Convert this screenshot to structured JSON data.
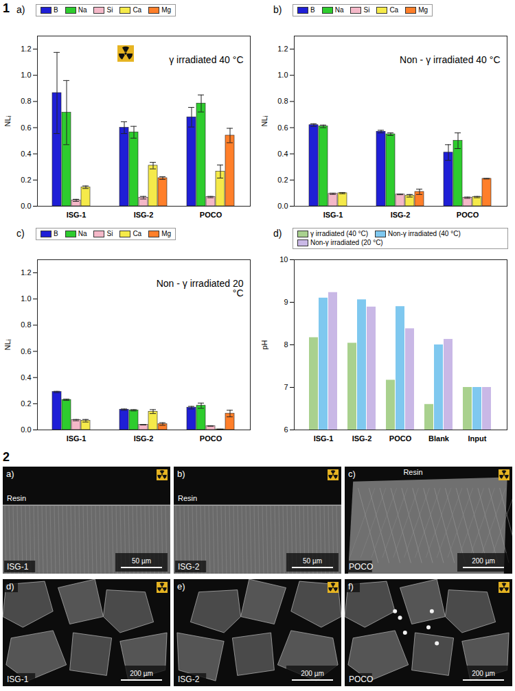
{
  "figure_labels": [
    "1",
    "2"
  ],
  "chart_data": [
    {
      "type": "bar",
      "panel": "a)",
      "title": "γ irradiated 40 °C",
      "categories": [
        "ISG-1",
        "ISG-2",
        "POCO"
      ],
      "series": [
        {
          "name": "B",
          "color": "#1f1fd6",
          "values": [
            0.865,
            0.6,
            0.68
          ],
          "errors": [
            0.31,
            0.045,
            0.075
          ]
        },
        {
          "name": "Na",
          "color": "#2ecc2e",
          "values": [
            0.715,
            0.565,
            0.785
          ],
          "errors": [
            0.245,
            0.045,
            0.065
          ]
        },
        {
          "name": "Si",
          "color": "#f4b8c8",
          "values": [
            0.045,
            0.065,
            0.07
          ],
          "errors": [
            0.008,
            0.01,
            0.005
          ]
        },
        {
          "name": "Ca",
          "color": "#f5ea4a",
          "values": [
            0.145,
            0.31,
            0.265
          ],
          "errors": [
            0.01,
            0.025,
            0.05
          ]
        },
        {
          "name": "Mg",
          "color": "#ff7f2a",
          "values": [
            null,
            0.215,
            0.54
          ],
          "errors": [
            null,
            0.01,
            0.055
          ]
        }
      ],
      "ylabel": "NLᵢ",
      "ylim": [
        0,
        1.3
      ],
      "yticks": [
        {
          "value": 0,
          "label": "0.0"
        },
        0.2,
        0.4,
        0.6,
        0.8,
        {
          "value": 1,
          "label": "1.0"
        },
        1.2
      ],
      "legend": "top"
    },
    {
      "type": "bar",
      "panel": "b)",
      "title": "Non - γ irradiated 40 °C",
      "categories": [
        "ISG-1",
        "ISG-2",
        "POCO"
      ],
      "series": [
        {
          "name": "B",
          "color": "#1f1fd6",
          "values": [
            0.62,
            0.57,
            0.41
          ],
          "errors": [
            0.01,
            0.01,
            0.06
          ]
        },
        {
          "name": "Na",
          "color": "#2ecc2e",
          "values": [
            0.61,
            0.55,
            0.5
          ],
          "errors": [
            0.01,
            0.01,
            0.06
          ]
        },
        {
          "name": "Si",
          "color": "#f4b8c8",
          "values": [
            0.095,
            0.09,
            0.065
          ],
          "errors": [
            0.005,
            0.002,
            0.005
          ]
        },
        {
          "name": "Ca",
          "color": "#f5ea4a",
          "values": [
            0.1,
            0.08,
            0.07
          ],
          "errors": [
            0.005,
            0.01,
            0.005
          ]
        },
        {
          "name": "Mg",
          "color": "#ff7f2a",
          "values": [
            null,
            0.11,
            0.21
          ],
          "errors": [
            null,
            0.02,
            0.002
          ]
        }
      ],
      "ylabel": "NLᵢ",
      "ylim": [
        0,
        1.3
      ],
      "yticks": [
        {
          "value": 0,
          "label": "0.0"
        },
        0.2,
        0.4,
        0.6,
        0.8,
        {
          "value": 1,
          "label": "1.0"
        },
        1.2
      ],
      "legend": "top"
    },
    {
      "type": "bar",
      "panel": "c)",
      "title": "Non - γ irradiated 20 °C",
      "categories": [
        "ISG-1",
        "ISG-2",
        "POCO"
      ],
      "series": [
        {
          "name": "B",
          "color": "#1f1fd6",
          "values": [
            0.29,
            0.155,
            0.17
          ],
          "errors": [
            0.005,
            0.005,
            0.01
          ]
        },
        {
          "name": "Na",
          "color": "#2ecc2e",
          "values": [
            0.23,
            0.15,
            0.185
          ],
          "errors": [
            0.005,
            0.005,
            0.02
          ]
        },
        {
          "name": "Si",
          "color": "#f4b8c8",
          "values": [
            0.075,
            0.04,
            0.03
          ],
          "errors": [
            0.005,
            0.002,
            0.002
          ]
        },
        {
          "name": "Ca",
          "color": "#f5ea4a",
          "values": [
            0.07,
            0.14,
            0.005
          ],
          "errors": [
            0.01,
            0.015,
            0.001
          ]
        },
        {
          "name": "Mg",
          "color": "#ff7f2a",
          "values": [
            null,
            0.045,
            0.125
          ],
          "errors": [
            null,
            0.01,
            0.025
          ]
        }
      ],
      "ylabel": "NLᵢ",
      "ylim": [
        0,
        1.3
      ],
      "yticks": [
        {
          "value": 0,
          "label": "0.0"
        },
        0.2,
        0.4,
        0.6,
        0.8,
        {
          "value": 1,
          "label": "1.0"
        },
        1.2
      ],
      "legend": "top"
    },
    {
      "type": "bar",
      "panel": "d)",
      "categories": [
        "ISG-1",
        "ISG-2",
        "POCO",
        "Blank",
        "Input"
      ],
      "series": [
        {
          "name": "γ irradiated (40 °C)",
          "color": "#a9d18e",
          "values": [
            8.17,
            8.04,
            7.17,
            6.6,
            7.0
          ]
        },
        {
          "name": "Non-γ irradiated (40 °C)",
          "color": "#7fc8ef",
          "values": [
            9.1,
            9.06,
            8.9,
            8.0,
            7.0
          ]
        },
        {
          "name": "Non-γ irradiated (20 °C)",
          "color": "#c9b8e6",
          "values": [
            9.23,
            8.89,
            8.38,
            8.13,
            7.0
          ]
        }
      ],
      "ylabel": "pH",
      "ylim": [
        6,
        10
      ],
      "yticks": [
        6,
        7,
        8,
        9,
        10
      ],
      "legend": "top"
    }
  ],
  "images": [
    {
      "panel": "a)",
      "label": "ISG-1",
      "annotation": "Resin",
      "scale_bar": "50 µm"
    },
    {
      "panel": "b)",
      "label": "ISG-2",
      "annotation": "Resin",
      "scale_bar": "50 µm"
    },
    {
      "panel": "c)",
      "label": "POCO",
      "annotation": "Resin",
      "scale_bar": "200 µm"
    },
    {
      "panel": "d)",
      "label": "ISG-1",
      "scale_bar": "200 µm"
    },
    {
      "panel": "e)",
      "label": "ISG-2",
      "scale_bar": "200 µm"
    },
    {
      "panel": "f)",
      "label": "POCO",
      "scale_bar": "200 µm"
    }
  ]
}
